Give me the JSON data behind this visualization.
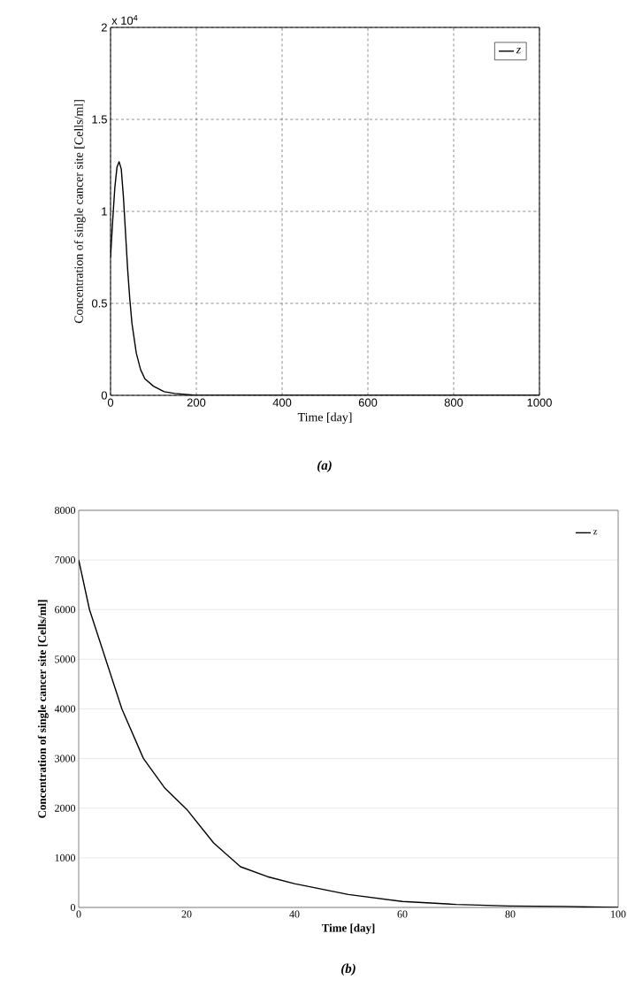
{
  "chart_data": [
    {
      "type": "line",
      "title": "(a)",
      "xlabel": "Time [day]",
      "ylabel": "Concentration of single cancer site [Cells/ml]",
      "annotations": [
        "x 10$^{4}$"
      ],
      "xlim": [
        0,
        1000
      ],
      "ylim": [
        0,
        2
      ],
      "xticks": [
        0,
        200,
        400,
        600,
        800,
        1000
      ],
      "yticks": [
        0,
        0.5,
        1,
        1.5,
        2
      ],
      "grid": true,
      "legend": "top right",
      "marker": "none",
      "line_style": "solid",
      "series": [
        {
          "name": "z",
          "color": "#000000",
          "x": [
            0,
            5,
            10,
            15,
            20,
            25,
            30,
            35,
            40,
            45,
            50,
            60,
            70,
            80,
            100,
            125,
            150,
            200,
            300,
            1000
          ],
          "values": [
            0.75,
            0.95,
            1.13,
            1.24,
            1.27,
            1.23,
            1.08,
            0.88,
            0.68,
            0.52,
            0.39,
            0.23,
            0.14,
            0.09,
            0.05,
            0.02,
            0.01,
            0,
            0,
            0
          ]
        }
      ]
    },
    {
      "type": "line",
      "title": "(b)",
      "xlabel": "Time [day]",
      "ylabel": "Concentration of single cancer site [Cells/ml]",
      "xlim": [
        0,
        100
      ],
      "ylim": [
        0,
        8000
      ],
      "xticks": [
        0,
        20,
        40,
        60,
        80,
        100
      ],
      "yticks": [
        0,
        1000,
        2000,
        3000,
        4000,
        5000,
        6000,
        7000,
        8000
      ],
      "grid": "y",
      "legend": "top right",
      "marker": "none",
      "line_style": "solid",
      "series": [
        {
          "name": "z",
          "color": "#000000",
          "x": [
            0,
            2,
            5,
            8,
            12,
            16,
            20,
            25,
            30,
            35,
            40,
            50,
            60,
            70,
            80,
            90,
            100
          ],
          "values": [
            7000,
            6000,
            5000,
            4000,
            3000,
            2400,
            1980,
            1300,
            820,
            620,
            480,
            260,
            120,
            60,
            30,
            20,
            0
          ]
        }
      ]
    }
  ]
}
